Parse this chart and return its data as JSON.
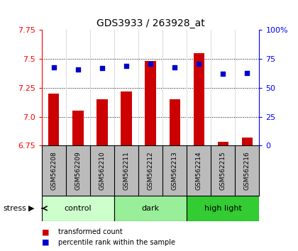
{
  "title": "GDS3933 / 263928_at",
  "samples": [
    "GSM562208",
    "GSM562209",
    "GSM562210",
    "GSM562211",
    "GSM562212",
    "GSM562213",
    "GSM562214",
    "GSM562215",
    "GSM562216"
  ],
  "transformed_count": [
    7.2,
    7.05,
    7.15,
    7.22,
    7.48,
    7.15,
    7.55,
    6.78,
    6.82
  ],
  "percentile_rank": [
    68,
    66,
    67,
    69,
    71,
    68,
    71,
    62,
    63
  ],
  "ylim_left": [
    6.75,
    7.75
  ],
  "ylim_right": [
    0,
    100
  ],
  "yticks_left": [
    6.75,
    7.0,
    7.25,
    7.5,
    7.75
  ],
  "yticks_right": [
    0,
    25,
    50,
    75,
    100
  ],
  "groups": [
    {
      "label": "control",
      "start": 0,
      "end": 3,
      "color": "#ccffcc"
    },
    {
      "label": "dark",
      "start": 3,
      "end": 6,
      "color": "#99ee99"
    },
    {
      "label": "high light",
      "start": 6,
      "end": 9,
      "color": "#33cc33"
    }
  ],
  "bar_color": "#cc0000",
  "dot_color": "#0000cc",
  "bar_bottom": 6.75,
  "bg_plot": "#ffffff",
  "bg_sample_row": "#bbbbbb",
  "stress_label": "stress",
  "legend_items": [
    {
      "label": "transformed count",
      "color": "#cc0000"
    },
    {
      "label": "percentile rank within the sample",
      "color": "#0000cc"
    }
  ]
}
